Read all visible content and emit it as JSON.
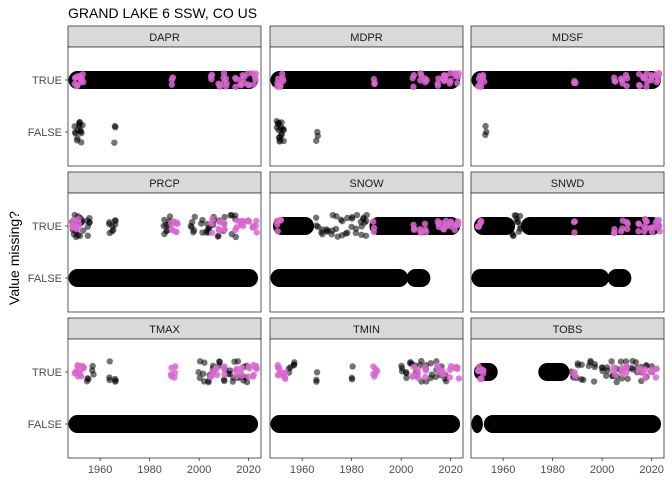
{
  "chart_data": {
    "type": "scatter",
    "title": "GRAND LAKE 6 SSW, CO US",
    "xlabel": "",
    "ylabel": "Value missing?",
    "y_categories": [
      "FALSE",
      "TRUE"
    ],
    "x_ticks": [
      "1960",
      "1980",
      "2000",
      "2020"
    ],
    "x_tick_values": [
      1960,
      1980,
      2000,
      2020
    ],
    "xlim": [
      1947,
      2025
    ],
    "grid": false,
    "legend": "none",
    "colors": {
      "normal": "#000000",
      "highlight": "#d966d0"
    },
    "facets": [
      {
        "name": "DAPR",
        "true_bands": [
          [
            1948,
            2023
          ]
        ],
        "true_scatter": [],
        "true_highlight": [
          1950,
          1951,
          1952,
          1953,
          1989,
          2005,
          2008,
          2010,
          2011,
          2015,
          2017,
          2018,
          2020,
          2022,
          2023
        ],
        "false_bands": [],
        "false_scatter": [
          1950,
          1951,
          1951.5,
          1952,
          1952.5,
          1966
        ]
      },
      {
        "name": "MDPR",
        "true_bands": [
          [
            1948,
            2023
          ]
        ],
        "true_scatter": [],
        "true_highlight": [
          1950,
          1951,
          1952,
          1989,
          2005,
          2008,
          2010,
          2015,
          2017,
          2018,
          2020,
          2022,
          2023
        ],
        "false_bands": [],
        "false_scatter": [
          1950,
          1950.5,
          1951,
          1951.5,
          1952,
          1952.5,
          1966
        ]
      },
      {
        "name": "MDSF",
        "true_bands": [
          [
            1948,
            2023
          ]
        ],
        "true_scatter": [],
        "true_highlight": [
          1950,
          1951,
          1952,
          1989,
          2005,
          2008,
          2010,
          2015,
          2017,
          2018,
          2020,
          2022,
          2023
        ],
        "false_bands": [],
        "false_scatter": [
          1953
        ]
      },
      {
        "name": "PRCP",
        "true_bands": [],
        "true_scatter": [
          1949,
          1950,
          1951,
          1952,
          1953,
          1955,
          1956,
          1964,
          1965,
          1966,
          1986,
          1987,
          1988,
          1997,
          1998,
          2001,
          2003,
          2004,
          2006,
          2008,
          2010,
          2013,
          2015
        ],
        "true_highlight": [
          1949,
          1950,
          1951,
          1989,
          1990,
          1991,
          2005,
          2008,
          2010,
          2015,
          2017,
          2018,
          2020,
          2022,
          2023
        ],
        "false_bands": [
          [
            1948,
            2023
          ]
        ],
        "false_scatter": []
      },
      {
        "name": "SNOW",
        "true_bands": [
          [
            1949,
            1964
          ],
          [
            1988,
            2023
          ]
        ],
        "true_scatter": [
          1966,
          1968,
          1970,
          1972,
          1974,
          1976,
          1978,
          1980,
          1982,
          1984,
          1985,
          1986
        ],
        "true_highlight": [
          1950,
          1951,
          1989,
          2005,
          2008,
          2010,
          2015,
          2017,
          2018,
          2020,
          2022,
          2023
        ],
        "false_bands": [
          [
            1948,
            2002
          ],
          [
            2003,
            2011
          ]
        ],
        "false_scatter": []
      },
      {
        "name": "SNWD",
        "true_bands": [
          [
            1949,
            1964
          ],
          [
            1968,
            2023
          ]
        ],
        "true_scatter": [
          1964,
          1965,
          1966,
          1967
        ],
        "true_highlight": [
          1950,
          1951,
          1989,
          2005,
          2008,
          2010,
          2015,
          2017,
          2018,
          2020,
          2022,
          2023
        ],
        "false_bands": [
          [
            1948,
            2002
          ],
          [
            2003,
            2011
          ]
        ],
        "false_scatter": []
      },
      {
        "name": "TMAX",
        "true_bands": [],
        "true_scatter": [
          1955,
          1957,
          1964,
          1966,
          2000,
          2002,
          2004,
          2006,
          2008,
          2010,
          2012,
          2014,
          2016,
          2018,
          2019
        ],
        "true_highlight": [
          1950,
          1951,
          1952,
          1953,
          1989,
          1990,
          2005,
          2007,
          2010,
          2015,
          2017,
          2020,
          2022,
          2023
        ],
        "false_bands": [
          [
            1948,
            2023
          ]
        ],
        "false_scatter": []
      },
      {
        "name": "TMIN",
        "true_bands": [],
        "true_scatter": [
          1955,
          1957,
          1966,
          1980,
          2000,
          2002,
          2004,
          2006,
          2008,
          2010,
          2012,
          2014,
          2016,
          2018
        ],
        "true_highlight": [
          1950,
          1951,
          1952,
          1953,
          1989,
          1990,
          2005,
          2007,
          2010,
          2015,
          2017,
          2020,
          2022,
          2023
        ],
        "false_bands": [
          [
            1948,
            2023
          ]
        ],
        "false_scatter": []
      },
      {
        "name": "TOBS",
        "true_bands": [
          [
            1949,
            1957
          ],
          [
            1975,
            1986
          ]
        ],
        "true_scatter": [
          1988,
          1990,
          1992,
          1995,
          1997,
          2000,
          2002,
          2004,
          2006,
          2008,
          2010,
          2012,
          2014,
          2016,
          2018,
          2020
        ],
        "true_highlight": [
          1950,
          1951,
          1952,
          1989,
          2005,
          2008,
          2010,
          2015,
          2017,
          2020,
          2022
        ],
        "false_bands": [
          [
            1948,
            1951
          ],
          [
            1953,
            2023
          ]
        ],
        "false_scatter": []
      }
    ]
  }
}
